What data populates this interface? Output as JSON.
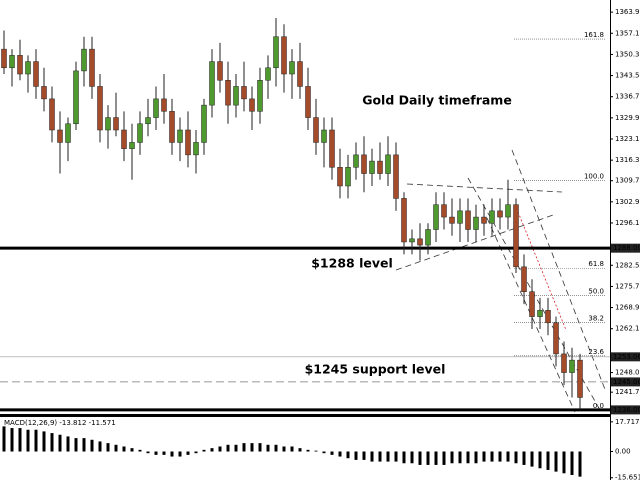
{
  "chart_data": {
    "type": "candlestick",
    "annotations": [
      "Gold Daily timeframe",
      "$1288 level",
      "$1245 support level"
    ],
    "open": [
      1352,
      1346,
      1350,
      1344,
      1348,
      1340,
      1336,
      1326,
      1322,
      1328,
      1345,
      1352,
      1340,
      1326,
      1330,
      1326,
      1320,
      1322,
      1328,
      1330,
      1336,
      1332,
      1322,
      1326,
      1318,
      1322,
      1334,
      1348,
      1342,
      1334,
      1340,
      1336,
      1332,
      1342,
      1346,
      1356,
      1344,
      1348,
      1340,
      1330,
      1322,
      1326,
      1314,
      1308,
      1314,
      1318,
      1312,
      1316,
      1312,
      1318,
      1304,
      1290,
      1291,
      1289,
      1294,
      1302,
      1298,
      1296,
      1300,
      1294,
      1298,
      1296,
      1300,
      1298,
      1302,
      1282,
      1274,
      1266,
      1268,
      1264,
      1254,
      1248,
      1252
    ],
    "high": [
      1358,
      1352,
      1355,
      1350,
      1352,
      1346,
      1340,
      1332,
      1330,
      1348,
      1356,
      1356,
      1344,
      1334,
      1338,
      1332,
      1328,
      1332,
      1336,
      1340,
      1344,
      1336,
      1330,
      1332,
      1326,
      1336,
      1352,
      1354,
      1348,
      1344,
      1348,
      1340,
      1346,
      1350,
      1362,
      1360,
      1352,
      1354,
      1346,
      1336,
      1330,
      1330,
      1320,
      1318,
      1322,
      1324,
      1320,
      1322,
      1324,
      1322,
      1306,
      1294,
      1296,
      1296,
      1306,
      1306,
      1304,
      1304,
      1304,
      1302,
      1302,
      1304,
      1304,
      1310,
      1304,
      1286,
      1278,
      1272,
      1272,
      1266,
      1258,
      1256,
      1254
    ],
    "low": [
      1344,
      1340,
      1342,
      1338,
      1336,
      1332,
      1322,
      1312,
      1316,
      1326,
      1340,
      1336,
      1322,
      1320,
      1324,
      1316,
      1310,
      1318,
      1324,
      1326,
      1328,
      1318,
      1316,
      1314,
      1312,
      1318,
      1330,
      1338,
      1328,
      1330,
      1332,
      1326,
      1328,
      1336,
      1340,
      1338,
      1336,
      1336,
      1326,
      1318,
      1314,
      1310,
      1304,
      1304,
      1310,
      1306,
      1308,
      1310,
      1308,
      1300,
      1286,
      1286,
      1284,
      1286,
      1290,
      1294,
      1292,
      1290,
      1290,
      1290,
      1292,
      1292,
      1294,
      1294,
      1280,
      1270,
      1262,
      1262,
      1260,
      1250,
      1244,
      1240,
      1236
    ],
    "close": [
      1346,
      1350,
      1344,
      1348,
      1340,
      1336,
      1326,
      1322,
      1328,
      1345,
      1352,
      1340,
      1326,
      1330,
      1326,
      1320,
      1322,
      1328,
      1330,
      1336,
      1332,
      1322,
      1326,
      1318,
      1322,
      1334,
      1348,
      1342,
      1334,
      1340,
      1336,
      1332,
      1342,
      1346,
      1356,
      1344,
      1348,
      1340,
      1330,
      1322,
      1326,
      1314,
      1308,
      1314,
      1318,
      1312,
      1316,
      1312,
      1318,
      1304,
      1290,
      1291,
      1289,
      1294,
      1302,
      1298,
      1296,
      1300,
      1294,
      1298,
      1296,
      1300,
      1298,
      1302,
      1282,
      1274,
      1266,
      1268,
      1264,
      1254,
      1248,
      1252,
      1240
    ],
    "up_color": "#4e9a2e",
    "down_color": "#a64b2a",
    "ylim": [
      1235,
      1367.8
    ],
    "yticks": [
      {
        "value": 1363.9,
        "label": "1363.90"
      },
      {
        "value": 1357.1,
        "label": "1357.10"
      },
      {
        "value": 1350.3,
        "label": "1350.30"
      },
      {
        "value": 1343.5,
        "label": "1343.50"
      },
      {
        "value": 1336.7,
        "label": "1336.70"
      },
      {
        "value": 1329.9,
        "label": "1329.90"
      },
      {
        "value": 1323.1,
        "label": "1323.10"
      },
      {
        "value": 1316.3,
        "label": "1316.30"
      },
      {
        "value": 1309.7,
        "label": "1309.70"
      },
      {
        "value": 1302.9,
        "label": "1302.90"
      },
      {
        "value": 1296.1,
        "label": "1296.10"
      },
      {
        "value": 1282.5,
        "label": "1282.50"
      },
      {
        "value": 1275.7,
        "label": "1275.70"
      },
      {
        "value": 1268.9,
        "label": "1268.90"
      },
      {
        "value": 1262.1,
        "label": "1262.10"
      },
      {
        "value": 1248,
        "label": "1248.00"
      },
      {
        "value": 1241.7,
        "label": "1241.70"
      }
    ],
    "levels": [
      {
        "value": 1288,
        "label": "1288.00"
      },
      {
        "value": 1253.06,
        "label": "1253.06"
      },
      {
        "value": 1245,
        "label": "1245.00"
      },
      {
        "value": 1236,
        "label": "1236.00"
      }
    ],
    "fibonacci": {
      "low": 1236,
      "high": 1309.7,
      "ratios": [
        161.8,
        {
          "value": 100,
          "label": "100.0"
        },
        61.8,
        {
          "value": 50,
          "label": "50.0"
        },
        38.2,
        23.6,
        {
          "value": 0,
          "label": "0.0"
        }
      ]
    },
    "macd": {
      "label": "MACD(12,26,9) -13.812 -11.571",
      "values": [
        15,
        14,
        14,
        13,
        13,
        12,
        11,
        10,
        9,
        8,
        8,
        7,
        6,
        5,
        4,
        3,
        2,
        1,
        -1,
        -2,
        -2,
        -3,
        -3,
        -2,
        -1,
        1,
        2,
        3,
        4,
        4,
        5,
        5,
        5,
        4,
        4,
        3,
        3,
        2,
        1,
        0.5,
        -1,
        -2,
        -3,
        -4,
        -5,
        -5,
        -6,
        -6,
        -6,
        -6,
        -7,
        -7,
        -8,
        -8,
        -8,
        -8,
        -7,
        -7,
        -7,
        -7,
        -6,
        -6,
        -6,
        -6,
        -7,
        -8,
        -9,
        -10,
        -11,
        -12,
        -13,
        -14,
        -15
      ],
      "color": "#000000",
      "ylim": [
        -17,
        20
      ],
      "yticks": [
        17.717,
        {
          "value": 0,
          "label": "0.00"
        },
        -15.651
      ]
    }
  }
}
